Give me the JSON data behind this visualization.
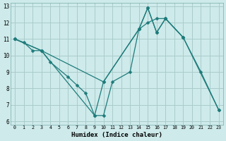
{
  "xlabel": "Humidex (Indice chaleur)",
  "bg_color": "#ceeaea",
  "grid_color": "#aacccc",
  "line_color": "#1e7b7b",
  "xlim": [
    -0.5,
    23.5
  ],
  "ylim": [
    5.8,
    13.2
  ],
  "xticks": [
    0,
    1,
    2,
    3,
    4,
    5,
    6,
    7,
    8,
    9,
    10,
    11,
    12,
    13,
    14,
    15,
    16,
    17,
    18,
    19,
    20,
    21,
    22,
    23
  ],
  "yticks": [
    6,
    7,
    8,
    9,
    10,
    11,
    12,
    13
  ],
  "line1_x": [
    0,
    1,
    2,
    3,
    4,
    6,
    7,
    8,
    9,
    10,
    11,
    13,
    14,
    15,
    16,
    17,
    19,
    21,
    23
  ],
  "line1_y": [
    11,
    10.8,
    10.3,
    10.3,
    9.6,
    8.7,
    8.2,
    7.7,
    6.35,
    6.35,
    8.4,
    9.0,
    11.6,
    12.9,
    11.4,
    12.25,
    11.1,
    9.0,
    6.7
  ],
  "line2_x": [
    0,
    3,
    10,
    14,
    15,
    16,
    17,
    19
  ],
  "line2_y": [
    11,
    10.3,
    8.4,
    11.6,
    12.0,
    12.25,
    12.25,
    11.1
  ],
  "line3_x": [
    0,
    3,
    9,
    10,
    14,
    15,
    16,
    17,
    19,
    23
  ],
  "line3_y": [
    11,
    10.3,
    6.35,
    8.4,
    11.6,
    12.9,
    11.4,
    12.25,
    11.1,
    6.7
  ]
}
